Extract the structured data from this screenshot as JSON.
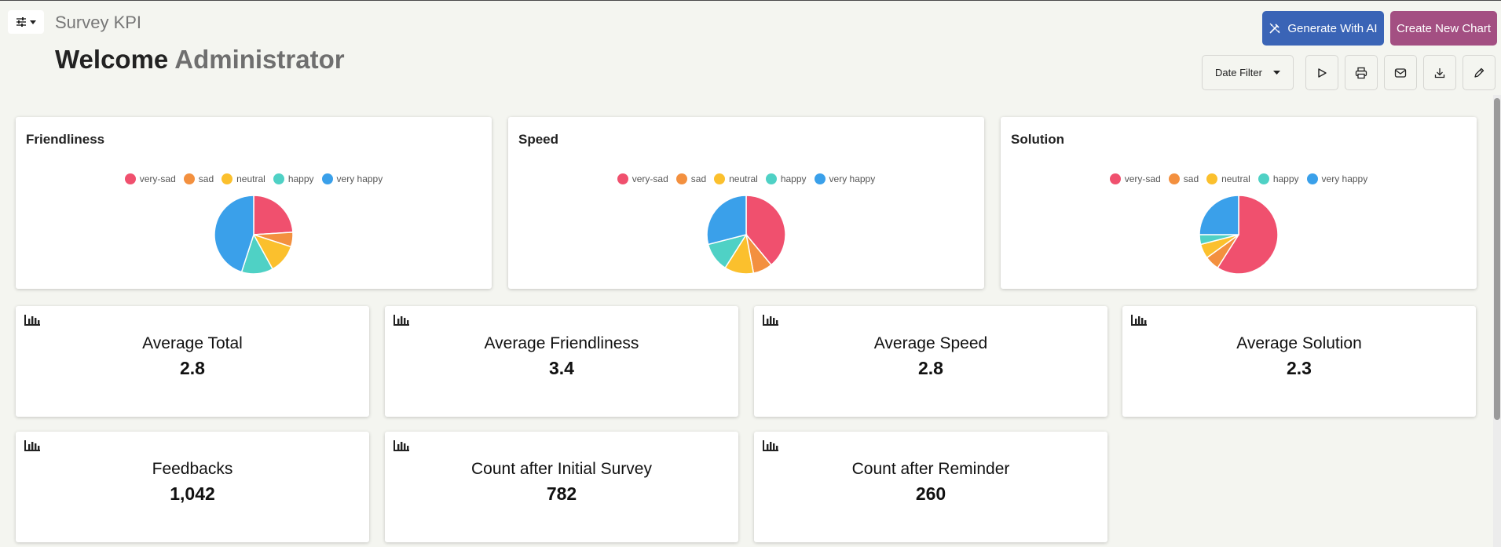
{
  "header": {
    "app_title": "Survey KPI",
    "welcome_word": "Welcome",
    "role_word": "Administrator",
    "generate_ai_label": "Generate With AI",
    "create_chart_label": "Create New Chart",
    "date_filter_label": "Date Filter"
  },
  "colors": {
    "very_sad": "#f0506e",
    "sad": "#f3903f",
    "neutral": "#fbc02d",
    "happy": "#4fd1c5",
    "very_happy": "#3aa0ea"
  },
  "legend": [
    "very-sad",
    "sad",
    "neutral",
    "happy",
    "very happy"
  ],
  "chart_data": [
    {
      "type": "pie",
      "title": "Friendliness",
      "categories": [
        "very-sad",
        "sad",
        "neutral",
        "happy",
        "very happy"
      ],
      "values": [
        24,
        6,
        12,
        13,
        45
      ],
      "legend_position": "top"
    },
    {
      "type": "pie",
      "title": "Speed",
      "categories": [
        "very-sad",
        "sad",
        "neutral",
        "happy",
        "very happy"
      ],
      "values": [
        39,
        8,
        12,
        12,
        29
      ],
      "legend_position": "top"
    },
    {
      "type": "pie",
      "title": "Solution",
      "categories": [
        "very-sad",
        "sad",
        "neutral",
        "happy",
        "very happy"
      ],
      "values": [
        59,
        6,
        6,
        4,
        25
      ],
      "legend_position": "top"
    }
  ],
  "kpis": [
    {
      "label": "Average Total",
      "value": "2.8"
    },
    {
      "label": "Average Friendliness",
      "value": "3.4"
    },
    {
      "label": "Average Speed",
      "value": "2.8"
    },
    {
      "label": "Average Solution",
      "value": "2.3"
    },
    {
      "label": "Feedbacks",
      "value": "1,042"
    },
    {
      "label": "Count after Initial Survey",
      "value": "782"
    },
    {
      "label": "Count after Reminder",
      "value": "260"
    }
  ]
}
